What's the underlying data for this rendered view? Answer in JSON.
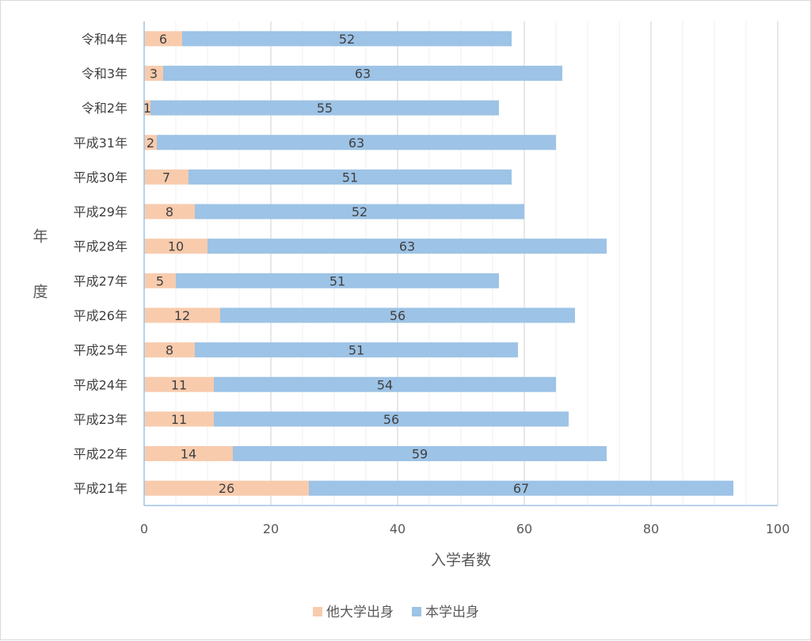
{
  "chart_data": {
    "type": "bar",
    "orientation": "horizontal",
    "stacked": true,
    "categories": [
      "平成21年",
      "平成22年",
      "平成23年",
      "平成24年",
      "平成25年",
      "平成26年",
      "平成27年",
      "平成28年",
      "平成29年",
      "平成30年",
      "平成31年",
      "令和2年",
      "令和3年",
      "令和4年"
    ],
    "series": [
      {
        "name": "他大学出身",
        "color": "#f8cbad",
        "values": [
          26,
          14,
          11,
          11,
          8,
          12,
          5,
          10,
          8,
          7,
          2,
          1,
          3,
          6
        ]
      },
      {
        "name": "本学出身",
        "color": "#9dc3e6",
        "values": [
          67,
          59,
          56,
          54,
          51,
          56,
          51,
          63,
          52,
          51,
          63,
          55,
          63,
          52
        ]
      }
    ],
    "xlabel": "入学者数",
    "ylabel": "年度",
    "xlim": [
      0,
      100
    ],
    "xticks": [
      0,
      20,
      40,
      60,
      80,
      100
    ],
    "grid": "vertical",
    "legend_position": "bottom"
  }
}
